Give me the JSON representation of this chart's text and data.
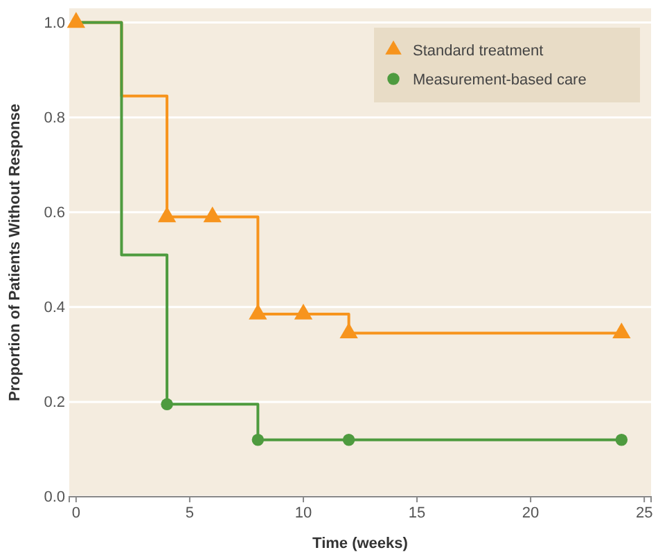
{
  "chart_data": {
    "type": "step",
    "xlabel": "Time (weeks)",
    "ylabel": "Proportion of Patients Without Response",
    "xlim": [
      -0.3,
      25.3
    ],
    "ylim": [
      0,
      1.03
    ],
    "xticks": [
      0,
      5,
      10,
      15,
      20,
      25
    ],
    "yticks": [
      {
        "value": 0,
        "label": "0.0"
      },
      {
        "value": 0.2,
        "label": "0.2"
      },
      {
        "value": 0.4,
        "label": "0.4"
      },
      {
        "value": 0.6,
        "label": "0.6"
      },
      {
        "value": 0.8,
        "label": "0.8"
      },
      {
        "value": 1,
        "label": "1.0"
      }
    ],
    "grid": "y",
    "legend": "top right",
    "line_style": "solid",
    "series": [
      {
        "color": "#f7941d",
        "x": [
          0,
          2,
          4,
          8,
          12,
          24
        ],
        "values": [
          1,
          0.845,
          0.59,
          0.385,
          0.345,
          0.345
        ]
      },
      {
        "color": "#4e9b3f",
        "x": [
          0,
          2,
          4,
          8,
          24
        ],
        "values": [
          1,
          0.51,
          0.195,
          0.12,
          0.12
        ]
      },
      {
        "type": "scatter",
        "name": "Standard treatment",
        "marker": "triangle",
        "color": "#f7941d",
        "x": [
          0,
          4,
          6,
          8,
          10,
          12,
          24
        ],
        "values": [
          1,
          0.59,
          0.59,
          0.385,
          0.385,
          0.345,
          0.345
        ]
      },
      {
        "type": "scatter",
        "name": "Measurement-based care",
        "marker": "circle",
        "color": "#4e9b3f",
        "x": [
          4,
          8,
          12,
          24
        ],
        "values": [
          0.195,
          0.12,
          0.12,
          0.12
        ]
      }
    ]
  }
}
